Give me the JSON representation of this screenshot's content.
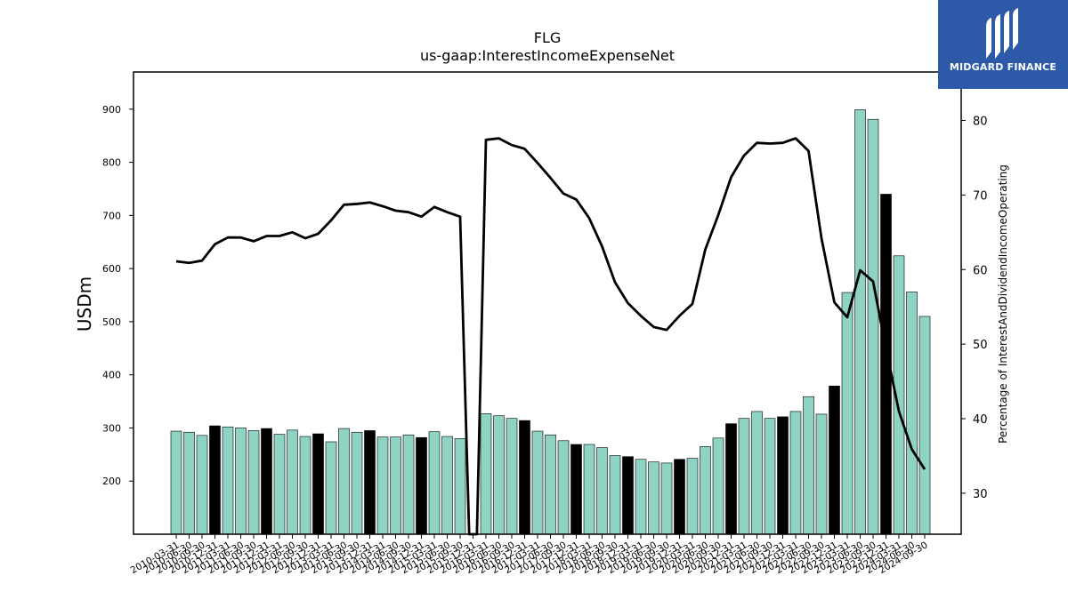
{
  "chart_data": {
    "type": "bar",
    "title": "FLG",
    "subtitle": "us-gaap:InterestIncomeExpenseNet",
    "ylabel": "USDm",
    "y2label": "Percentage of InterestAndDividendIncomeOperating",
    "ylim": [
      100,
      970
    ],
    "y2lim": [
      24.5,
      86.5
    ],
    "yticks": [
      200,
      300,
      400,
      500,
      600,
      700,
      800,
      900
    ],
    "y2ticks": [
      30,
      40,
      50,
      60,
      70,
      80
    ],
    "categories": [
      "2010-03-31",
      "2010-06-30",
      "2010-09-30",
      "2010-12-31",
      "2011-03-31",
      "2011-06-30",
      "2011-09-30",
      "2011-12-31",
      "2012-03-31",
      "2012-06-30",
      "2012-09-30",
      "2012-12-31",
      "2013-03-31",
      "2013-06-30",
      "2013-09-30",
      "2013-12-31",
      "2014-03-31",
      "2014-06-30",
      "2014-09-30",
      "2014-12-31",
      "2015-03-31",
      "2015-06-30",
      "2015-09-30",
      "2015-12-31",
      "2016-03-31",
      "2016-06-30",
      "2016-09-30",
      "2016-12-31",
      "2017-03-31",
      "2017-06-30",
      "2017-09-30",
      "2017-12-31",
      "2018-03-31",
      "2018-06-30",
      "2018-09-30",
      "2018-12-31",
      "2019-03-31",
      "2019-06-30",
      "2019-09-30",
      "2019-12-31",
      "2020-03-31",
      "2020-06-30",
      "2020-09-30",
      "2020-12-31",
      "2021-03-31",
      "2021-06-30",
      "2021-09-30",
      "2021-12-31",
      "2022-03-31",
      "2022-06-30",
      "2022-09-30",
      "2022-12-31",
      "2023-03-31",
      "2023-06-30",
      "2023-09-30",
      "2023-12-31",
      "2024-03-31",
      "2024-06-30",
      "2024-09-30"
    ],
    "series": [
      {
        "type": "bar",
        "values": [
          294,
          292,
          286,
          304,
          302,
          300,
          295,
          299,
          288,
          296,
          284,
          289,
          274,
          299,
          292,
          295,
          283,
          283,
          287,
          282,
          293,
          284,
          280,
          null,
          327,
          323,
          318,
          314,
          294,
          287,
          276,
          269,
          269,
          263,
          248,
          246,
          241,
          236,
          234,
          241,
          243,
          265,
          281,
          308,
          318,
          331,
          318,
          321,
          331,
          359,
          326,
          379,
          555,
          899,
          881,
          740,
          624,
          556,
          510
        ]
      },
      {
        "type": "line",
        "axis": "right",
        "values": [
          61.1,
          60.9,
          61.2,
          63.4,
          64.3,
          64.3,
          63.8,
          64.5,
          64.5,
          65.0,
          64.2,
          64.8,
          66.6,
          68.7,
          68.8,
          69.0,
          68.5,
          67.9,
          67.7,
          67.1,
          68.4,
          67.7,
          67.1,
          null,
          77.4,
          77.6,
          76.7,
          76.2,
          74.3,
          72.3,
          70.2,
          69.4,
          66.9,
          63.1,
          58.3,
          55.5,
          53.8,
          52.3,
          51.9,
          53.8,
          55.4,
          62.7,
          67.3,
          72.4,
          75.3,
          77.0,
          76.9,
          77.0,
          77.6,
          75.9,
          64.2,
          55.6,
          53.6,
          59.9,
          58.4,
          49.4,
          41.0,
          35.9,
          33.2
        ]
      }
    ],
    "highlight_color": "#000000",
    "bar_color": "#8fd3c4",
    "line_color": "#000000",
    "grid": false
  },
  "logo": {
    "text": "MIDGARD FINANCE",
    "bg_color": "#2d5aa8"
  }
}
